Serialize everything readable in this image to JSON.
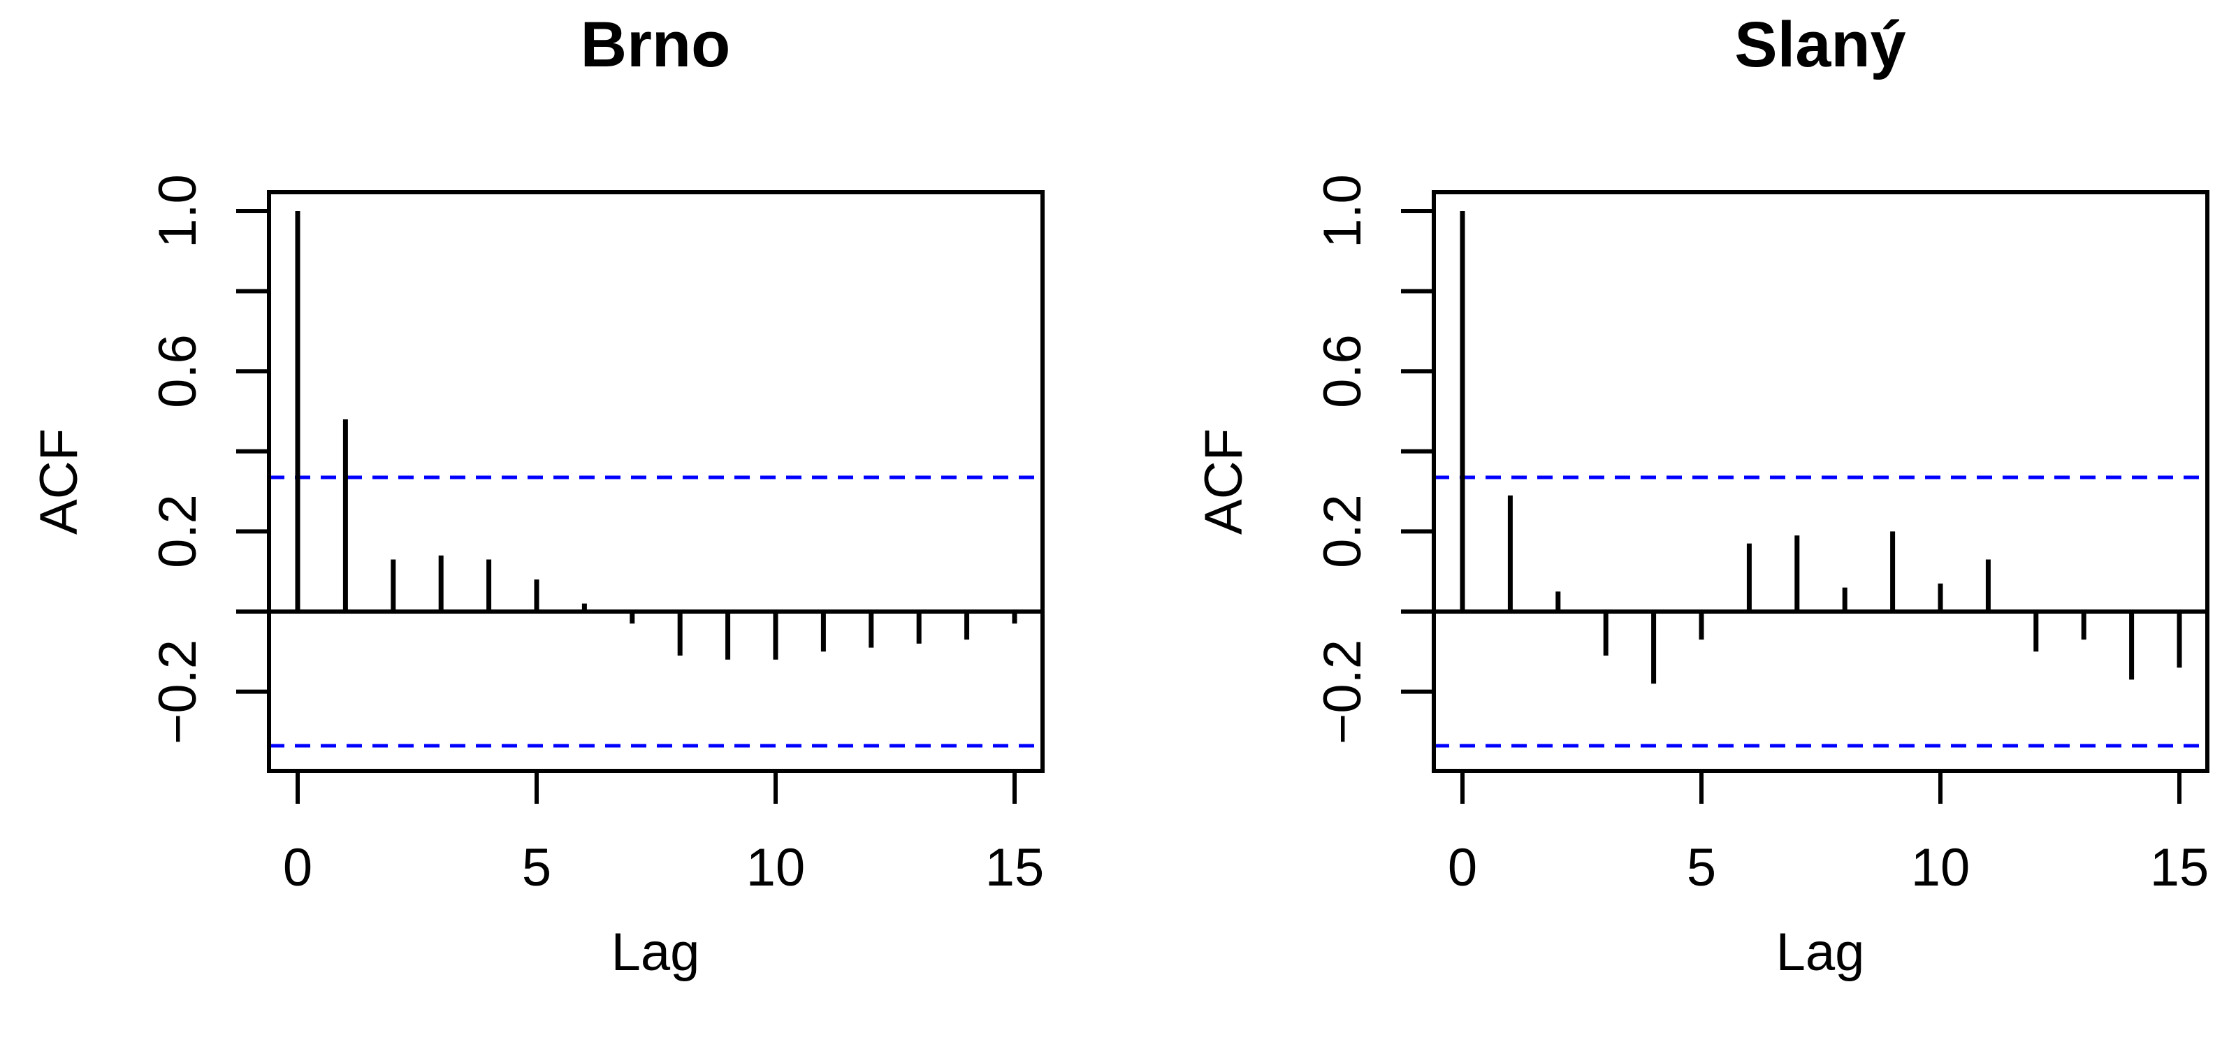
{
  "figure": {
    "background": "#ffffff",
    "line_color": "#000000",
    "ci_line_color": "#0000ff"
  },
  "chart_data": [
    {
      "type": "bar",
      "subtype": "acf-stick-plot",
      "title": "Brno",
      "xlabel": "Lag",
      "ylabel": "ACF",
      "x": [
        0,
        1,
        2,
        3,
        4,
        5,
        6,
        7,
        8,
        9,
        10,
        11,
        12,
        13,
        14,
        15
      ],
      "values": [
        1.0,
        0.48,
        0.13,
        0.14,
        0.13,
        0.08,
        0.02,
        -0.03,
        -0.11,
        -0.12,
        -0.12,
        -0.1,
        -0.09,
        -0.08,
        -0.07,
        -0.03
      ],
      "confidence_level": 0.335,
      "xticks": [
        0,
        5,
        10,
        15
      ],
      "xtick_labels": [
        "0",
        "5",
        "10",
        "15"
      ],
      "yticks": [
        -0.2,
        0,
        0.2,
        0.4,
        0.6,
        0.8,
        1
      ],
      "ytick_labels": [
        {
          "value": 1.0,
          "label": "1.0"
        },
        {
          "value": 0.6,
          "label": "0.6"
        },
        {
          "value": 0.2,
          "label": "0.2"
        },
        {
          "value": -0.2,
          "label": "−0.2"
        }
      ],
      "xlim": [
        -0.6,
        15.6
      ],
      "ylim": [
        -0.4,
        1.05
      ],
      "grid": false,
      "legend": "none",
      "bar_color": "#000000",
      "ci_color": "#0000ff"
    },
    {
      "type": "bar",
      "subtype": "acf-stick-plot",
      "title": "Slaný",
      "xlabel": "Lag",
      "ylabel": "ACF",
      "x": [
        0,
        1,
        2,
        3,
        4,
        5,
        6,
        7,
        8,
        9,
        10,
        11,
        12,
        13,
        14,
        15
      ],
      "values": [
        1.0,
        0.29,
        0.05,
        -0.11,
        -0.18,
        -0.07,
        0.17,
        0.19,
        0.06,
        0.2,
        0.07,
        0.13,
        -0.1,
        -0.07,
        -0.17,
        -0.14
      ],
      "confidence_level": 0.335,
      "xticks": [
        0,
        5,
        10,
        15
      ],
      "xtick_labels": [
        "0",
        "5",
        "10",
        "15"
      ],
      "yticks": [
        -0.2,
        0,
        0.2,
        0.4,
        0.6,
        0.8,
        1
      ],
      "ytick_labels": [
        {
          "value": 1.0,
          "label": "1.0"
        },
        {
          "value": 0.6,
          "label": "0.6"
        },
        {
          "value": 0.2,
          "label": "0.2"
        },
        {
          "value": -0.2,
          "label": "−0.2"
        }
      ],
      "xlim": [
        -0.6,
        15.6
      ],
      "ylim": [
        -0.4,
        1.05
      ],
      "grid": false,
      "legend": "none",
      "bar_color": "#000000",
      "ci_color": "#0000ff"
    }
  ]
}
